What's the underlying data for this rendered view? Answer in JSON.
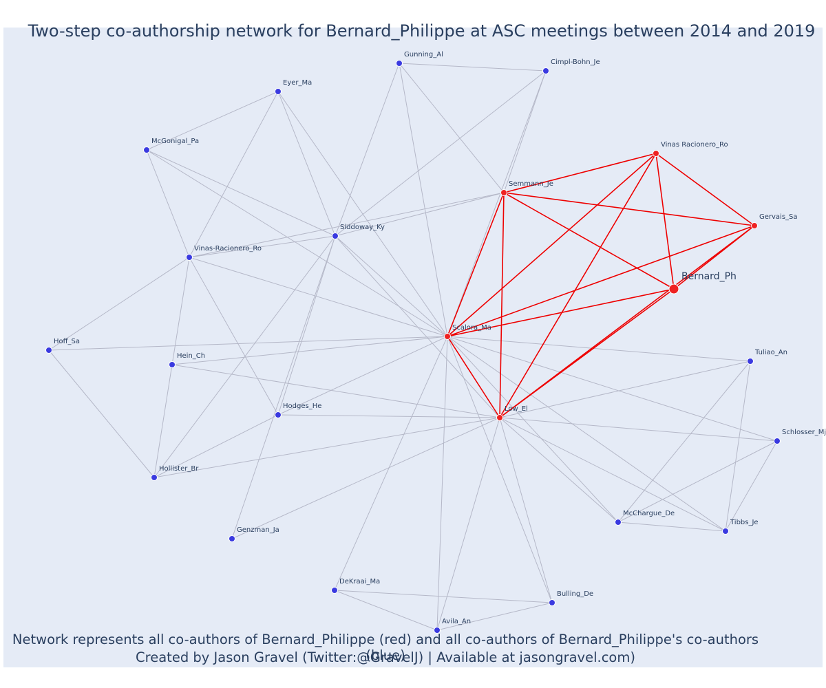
{
  "title": "Two-step co-authorship network for Bernard_Philippe at ASC meetings between 2014 and 2019",
  "caption": {
    "line1": "Network represents all co-authors of Bernard_Philippe (red) and all co-authors of Bernard_Philippe's co-authors (blue)",
    "line2": "Created by Jason Gravel (Twitter:@GravelJ) | Available at jasongravel.com)"
  },
  "colors": {
    "background": "#e5ebf6",
    "red_node": "#ee2222",
    "blue_node": "#3a3ae0",
    "red_edge": "#ee0000",
    "gray_edge": "#b5b8c8"
  },
  "nodes": [
    {
      "id": "Bernard_Ph",
      "group": "focal"
    },
    {
      "id": "Scalora_Ma",
      "group": "red"
    },
    {
      "id": "Low_El",
      "group": "red"
    },
    {
      "id": "Semmann_Je",
      "group": "red"
    },
    {
      "id": "Vinas Racionero_Ro",
      "group": "red"
    },
    {
      "id": "Gervais_Sa",
      "group": "red"
    },
    {
      "id": "Gunning_Al",
      "group": "blue"
    },
    {
      "id": "Cimpl-Bohn_Je",
      "group": "blue"
    },
    {
      "id": "Eyer_Ma",
      "group": "blue"
    },
    {
      "id": "McGonigal_Pa",
      "group": "blue"
    },
    {
      "id": "Siddoway_Ky",
      "group": "blue"
    },
    {
      "id": "Vinas-Racionero_Ro",
      "group": "blue"
    },
    {
      "id": "Hoff_Sa",
      "group": "blue"
    },
    {
      "id": "Hein_Ch",
      "group": "blue"
    },
    {
      "id": "Hodges_He",
      "group": "blue"
    },
    {
      "id": "Hollister_Br",
      "group": "blue"
    },
    {
      "id": "Genzman_Ja",
      "group": "blue"
    },
    {
      "id": "DeKraai_Ma",
      "group": "blue"
    },
    {
      "id": "Avila_An",
      "group": "blue"
    },
    {
      "id": "Bulling_De",
      "group": "blue"
    },
    {
      "id": "McChargue_De",
      "group": "blue"
    },
    {
      "id": "Tibbs_Je",
      "group": "blue"
    },
    {
      "id": "Schlosser_Mj",
      "group": "blue"
    },
    {
      "id": "Tuliao_An",
      "group": "blue"
    }
  ],
  "red_edges": [
    [
      "Bernard_Ph",
      "Scalora_Ma"
    ],
    [
      "Bernard_Ph",
      "Low_El"
    ],
    [
      "Bernard_Ph",
      "Semmann_Je"
    ],
    [
      "Bernard_Ph",
      "Vinas Racionero_Ro"
    ],
    [
      "Bernard_Ph",
      "Gervais_Sa"
    ],
    [
      "Scalora_Ma",
      "Low_El"
    ],
    [
      "Scalora_Ma",
      "Semmann_Je"
    ],
    [
      "Scalora_Ma",
      "Vinas Racionero_Ro"
    ],
    [
      "Scalora_Ma",
      "Gervais_Sa"
    ],
    [
      "Low_El",
      "Semmann_Je"
    ],
    [
      "Low_El",
      "Vinas Racionero_Ro"
    ],
    [
      "Low_El",
      "Gervais_Sa"
    ],
    [
      "Semmann_Je",
      "Vinas Racionero_Ro"
    ],
    [
      "Semmann_Je",
      "Gervais_Sa"
    ],
    [
      "Vinas Racionero_Ro",
      "Gervais_Sa"
    ]
  ],
  "gray_edges": [
    [
      "Gunning_Al",
      "Cimpl-Bohn_Je"
    ],
    [
      "Gunning_Al",
      "Semmann_Je"
    ],
    [
      "Gunning_Al",
      "Scalora_Ma"
    ],
    [
      "Gunning_Al",
      "Siddoway_Ky"
    ],
    [
      "Cimpl-Bohn_Je",
      "Siddoway_Ky"
    ],
    [
      "Cimpl-Bohn_Je",
      "Scalora_Ma"
    ],
    [
      "Cimpl-Bohn_Je",
      "Semmann_Je"
    ],
    [
      "Eyer_Ma",
      "McGonigal_Pa"
    ],
    [
      "Eyer_Ma",
      "Siddoway_Ky"
    ],
    [
      "Eyer_Ma",
      "Vinas-Racionero_Ro"
    ],
    [
      "Eyer_Ma",
      "Scalora_Ma"
    ],
    [
      "McGonigal_Pa",
      "Vinas-Racionero_Ro"
    ],
    [
      "McGonigal_Pa",
      "Siddoway_Ky"
    ],
    [
      "McGonigal_Pa",
      "Scalora_Ma"
    ],
    [
      "Siddoway_Ky",
      "Semmann_Je"
    ],
    [
      "Siddoway_Ky",
      "Vinas-Racionero_Ro"
    ],
    [
      "Siddoway_Ky",
      "Scalora_Ma"
    ],
    [
      "Siddoway_Ky",
      "Low_El"
    ],
    [
      "Siddoway_Ky",
      "Hodges_He"
    ],
    [
      "Siddoway_Ky",
      "Hollister_Br"
    ],
    [
      "Siddoway_Ky",
      "Genzman_Ja"
    ],
    [
      "Vinas-Racionero_Ro",
      "Semmann_Je"
    ],
    [
      "Vinas-Racionero_Ro",
      "Scalora_Ma"
    ],
    [
      "Vinas-Racionero_Ro",
      "Hoff_Sa"
    ],
    [
      "Vinas-Racionero_Ro",
      "Hein_Ch"
    ],
    [
      "Vinas-Racionero_Ro",
      "Hodges_He"
    ],
    [
      "Hoff_Sa",
      "Scalora_Ma"
    ],
    [
      "Hoff_Sa",
      "Hollister_Br"
    ],
    [
      "Hein_Ch",
      "Scalora_Ma"
    ],
    [
      "Hein_Ch",
      "Low_El"
    ],
    [
      "Hein_Ch",
      "Hollister_Br"
    ],
    [
      "Hodges_He",
      "Scalora_Ma"
    ],
    [
      "Hodges_He",
      "Low_El"
    ],
    [
      "Hodges_He",
      "Hollister_Br"
    ],
    [
      "Hollister_Br",
      "Low_El"
    ],
    [
      "Genzman_Ja",
      "Low_El"
    ],
    [
      "DeKraai_Ma",
      "Scalora_Ma"
    ],
    [
      "DeKraai_Ma",
      "Avila_An"
    ],
    [
      "DeKraai_Ma",
      "Bulling_De"
    ],
    [
      "Avila_An",
      "Scalora_Ma"
    ],
    [
      "Avila_An",
      "Low_El"
    ],
    [
      "Avila_An",
      "Bulling_De"
    ],
    [
      "Bulling_De",
      "Scalora_Ma"
    ],
    [
      "Bulling_De",
      "Low_El"
    ],
    [
      "McChargue_De",
      "Scalora_Ma"
    ],
    [
      "McChargue_De",
      "Low_El"
    ],
    [
      "McChargue_De",
      "Tibbs_Je"
    ],
    [
      "McChargue_De",
      "Tuliao_An"
    ],
    [
      "McChargue_De",
      "Schlosser_Mj"
    ],
    [
      "Tibbs_Je",
      "Scalora_Ma"
    ],
    [
      "Tibbs_Je",
      "Low_El"
    ],
    [
      "Tibbs_Je",
      "Tuliao_An"
    ],
    [
      "Tibbs_Je",
      "Schlosser_Mj"
    ],
    [
      "Tuliao_An",
      "Scalora_Ma"
    ],
    [
      "Tuliao_An",
      "Low_El"
    ],
    [
      "Schlosser_Mj",
      "Scalora_Ma"
    ],
    [
      "Schlosser_Mj",
      "Low_El"
    ]
  ]
}
